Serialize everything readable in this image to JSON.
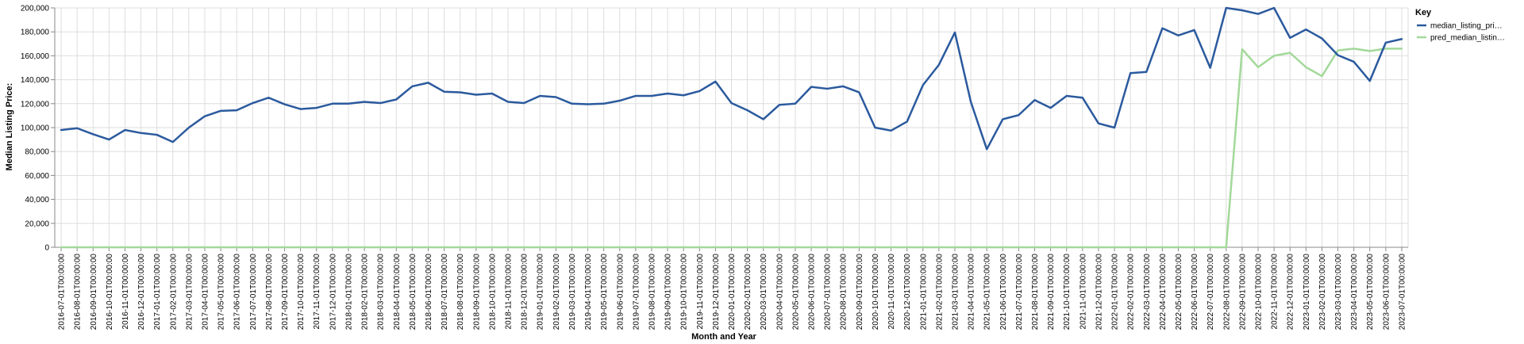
{
  "chart_data": {
    "type": "line",
    "xlabel": "Month and Year",
    "ylabel": "Median Listing Price:",
    "ylim": [
      0,
      200000
    ],
    "yticks": [
      "0",
      "20,000",
      "40,000",
      "60,000",
      "80,000",
      "100,000",
      "120,000",
      "140,000",
      "160,000",
      "180,000",
      "200,000"
    ],
    "grid": true,
    "legend": {
      "title": "Key",
      "placement": "top-right"
    },
    "colors": {
      "median_listing_price": "#2b5a9e",
      "pred_median_listing_price": "#a3d99a"
    },
    "categories": [
      "2016-07-01T00:00:00",
      "2016-08-01T00:00:00",
      "2016-09-01T00:00:00",
      "2016-10-01T00:00:00",
      "2016-11-01T00:00:00",
      "2016-12-01T00:00:00",
      "2017-01-01T00:00:00",
      "2017-02-01T00:00:00",
      "2017-03-01T00:00:00",
      "2017-04-01T00:00:00",
      "2017-05-01T00:00:00",
      "2017-06-01T00:00:00",
      "2017-07-01T00:00:00",
      "2017-08-01T00:00:00",
      "2017-09-01T00:00:00",
      "2017-10-01T00:00:00",
      "2017-11-01T00:00:00",
      "2017-12-01T00:00:00",
      "2018-01-01T00:00:00",
      "2018-02-01T00:00:00",
      "2018-03-01T00:00:00",
      "2018-04-01T00:00:00",
      "2018-05-01T00:00:00",
      "2018-06-01T00:00:00",
      "2018-07-01T00:00:00",
      "2018-08-01T00:00:00",
      "2018-09-01T00:00:00",
      "2018-10-01T00:00:00",
      "2018-11-01T00:00:00",
      "2018-12-01T00:00:00",
      "2019-01-01T00:00:00",
      "2019-02-01T00:00:00",
      "2019-03-01T00:00:00",
      "2019-04-01T00:00:00",
      "2019-05-01T00:00:00",
      "2019-06-01T00:00:00",
      "2019-07-01T00:00:00",
      "2019-08-01T00:00:00",
      "2019-09-01T00:00:00",
      "2019-10-01T00:00:00",
      "2019-11-01T00:00:00",
      "2019-12-01T00:00:00",
      "2020-01-01T00:00:00",
      "2020-02-01T00:00:00",
      "2020-03-01T00:00:00",
      "2020-04-01T00:00:00",
      "2020-05-01T00:00:00",
      "2020-06-01T00:00:00",
      "2020-07-01T00:00:00",
      "2020-08-01T00:00:00",
      "2020-09-01T00:00:00",
      "2020-10-01T00:00:00",
      "2020-11-01T00:00:00",
      "2020-12-01T00:00:00",
      "2021-01-01T00:00:00",
      "2021-02-01T00:00:00",
      "2021-03-01T00:00:00",
      "2021-04-01T00:00:00",
      "2021-05-01T00:00:00",
      "2021-06-01T00:00:00",
      "2021-07-01T00:00:00",
      "2021-08-01T00:00:00",
      "2021-09-01T00:00:00",
      "2021-10-01T00:00:00",
      "2021-11-01T00:00:00",
      "2021-12-01T00:00:00",
      "2022-01-01T00:00:00",
      "2022-02-01T00:00:00",
      "2022-03-01T00:00:00",
      "2022-04-01T00:00:00",
      "2022-05-01T00:00:00",
      "2022-06-01T00:00:00",
      "2022-07-01T00:00:00",
      "2022-08-01T00:00:00",
      "2022-09-01T00:00:00",
      "2022-10-01T00:00:00",
      "2022-11-01T00:00:00",
      "2022-12-01T00:00:00",
      "2023-01-01T00:00:00",
      "2023-02-01T00:00:00",
      "2023-03-01T00:00:00",
      "2023-04-01T00:00:00",
      "2023-05-01T00:00:00",
      "2023-06-01T00:00:00",
      "2023-07-01T00:00:00"
    ],
    "series": [
      {
        "name": "median_listing_pri…",
        "values": [
          98000,
          99500,
          94500,
          90000,
          98000,
          95500,
          94000,
          88000,
          100000,
          109500,
          114000,
          114500,
          120500,
          125000,
          119500,
          115500,
          116500,
          120000,
          120000,
          121500,
          120500,
          123500,
          134500,
          137500,
          130000,
          129500,
          127500,
          128500,
          121500,
          120500,
          126500,
          125500,
          120000,
          119500,
          120000,
          122500,
          126500,
          126500,
          128500,
          127000,
          130500,
          138500,
          120500,
          114500,
          107000,
          119000,
          120000,
          134000,
          132500,
          134500,
          129500,
          100000,
          97500,
          105000,
          135500,
          152500,
          179500,
          121500,
          82000,
          107000,
          110500,
          123000,
          116500,
          126500,
          125000,
          103500,
          100000,
          145500,
          146500,
          183000,
          177000,
          181500,
          150000,
          200000,
          198000,
          195000,
          200000,
          175000,
          182000,
          174500,
          160500,
          155000,
          139000,
          171000,
          174000
        ]
      },
      {
        "name": "pred_median_listin…",
        "values": [
          0,
          0,
          0,
          0,
          0,
          0,
          0,
          0,
          0,
          0,
          0,
          0,
          0,
          0,
          0,
          0,
          0,
          0,
          0,
          0,
          0,
          0,
          0,
          0,
          0,
          0,
          0,
          0,
          0,
          0,
          0,
          0,
          0,
          0,
          0,
          0,
          0,
          0,
          0,
          0,
          0,
          0,
          0,
          0,
          0,
          0,
          0,
          0,
          0,
          0,
          0,
          0,
          0,
          0,
          0,
          0,
          0,
          0,
          0,
          0,
          0,
          0,
          0,
          0,
          0,
          0,
          0,
          0,
          0,
          0,
          0,
          0,
          0,
          0,
          165500,
          150500,
          160000,
          162500,
          150500,
          143000,
          164500,
          166000,
          164000,
          166000,
          166000
        ]
      }
    ]
  }
}
